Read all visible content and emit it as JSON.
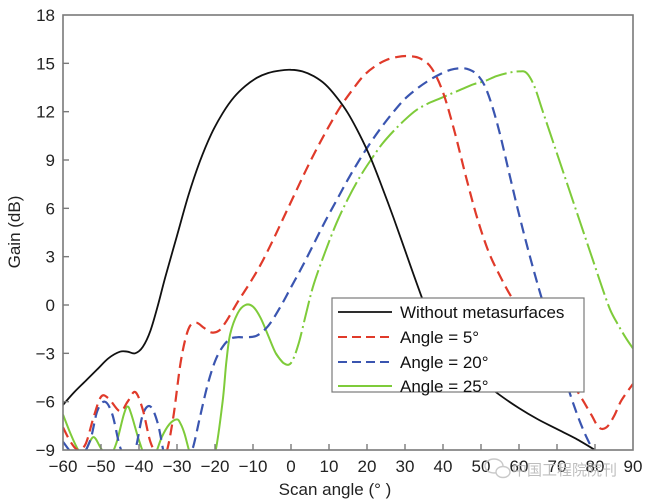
{
  "chart_data": {
    "type": "line",
    "title": "",
    "xlabel": "Scan angle (° )",
    "ylabel": "Gain (dB)",
    "xlim": [
      -60,
      90
    ],
    "ylim": [
      -9,
      18
    ],
    "xticks": [
      -60,
      -50,
      -40,
      -30,
      -20,
      -10,
      0,
      10,
      20,
      30,
      40,
      50,
      60,
      70,
      80,
      90
    ],
    "xtick_labels": [
      "−60",
      "−50",
      "−40",
      "−30",
      "−20",
      "−10",
      "0",
      "10",
      "20",
      "30",
      "40",
      "50",
      "60",
      "70",
      "80",
      "90"
    ],
    "yticks": [
      18,
      15,
      12,
      9,
      6,
      3,
      0,
      -3,
      -6,
      -9
    ],
    "ytick_labels": [
      "18",
      "15",
      "12",
      "9",
      "6",
      "3",
      "0",
      "−3",
      "−6",
      "−9"
    ],
    "grid": false,
    "legend": {
      "placement": "lower-right"
    },
    "series": [
      {
        "name": "Without metasurfaces",
        "color": "#111111",
        "style": "solid",
        "x": [
          -60,
          -57,
          -54,
          -51,
          -48,
          -45,
          -43,
          -41,
          -39,
          -37,
          -35,
          -33,
          -30,
          -27,
          -24,
          -21,
          -18,
          -15,
          -12,
          -9,
          -6,
          -3,
          0,
          3,
          6,
          9,
          12,
          15,
          18,
          21,
          24,
          27,
          30,
          33,
          36,
          39,
          42,
          45,
          50,
          55,
          60,
          65,
          70,
          75,
          80
        ],
        "y": [
          -6.2,
          -5.4,
          -4.7,
          -4.0,
          -3.3,
          -2.9,
          -2.9,
          -3.0,
          -2.6,
          -1.6,
          0.0,
          1.8,
          4.3,
          6.8,
          8.9,
          10.6,
          11.9,
          12.9,
          13.6,
          14.1,
          14.4,
          14.55,
          14.6,
          14.5,
          14.2,
          13.7,
          12.9,
          11.9,
          10.6,
          9.1,
          7.3,
          5.4,
          3.4,
          1.4,
          -0.5,
          -2.0,
          -3.0,
          -3.7,
          -4.7,
          -5.6,
          -6.4,
          -7.1,
          -7.7,
          -8.3,
          -9.0
        ]
      },
      {
        "name": "Angle = 5°",
        "color": "#e03a2a",
        "style": "dashed",
        "x": [
          -60,
          -58,
          -56,
          -54,
          -52,
          -50,
          -48,
          -45,
          -43,
          -41,
          -39,
          -37,
          -35,
          -33,
          -31,
          -29,
          -27,
          -25,
          -23,
          -21,
          -19,
          -17,
          -14,
          -11,
          -8,
          -5,
          -2,
          1,
          4,
          7,
          10,
          13,
          16,
          19,
          22,
          25,
          28,
          31,
          34,
          37,
          40,
          43,
          46,
          49,
          52,
          55,
          58,
          61,
          64,
          67,
          70,
          73,
          76,
          79,
          81,
          83,
          85,
          87,
          90
        ],
        "y": [
          -7.6,
          -8.5,
          -9.0,
          -8.6,
          -7.0,
          -5.7,
          -5.8,
          -6.6,
          -6.0,
          -5.4,
          -6.5,
          -8.5,
          -9.3,
          -9.3,
          -7.0,
          -3.5,
          -1.5,
          -1.1,
          -1.4,
          -1.7,
          -1.6,
          -1.0,
          0.2,
          1.3,
          2.5,
          3.9,
          5.4,
          6.9,
          8.4,
          9.8,
          11.1,
          12.3,
          13.3,
          14.2,
          14.8,
          15.2,
          15.4,
          15.45,
          15.3,
          14.7,
          13.2,
          10.8,
          8.0,
          5.4,
          3.3,
          1.8,
          0.5,
          -0.5,
          -1.5,
          -2.5,
          -3.5,
          -4.5,
          -5.6,
          -6.8,
          -7.6,
          -7.6,
          -6.9,
          -5.9,
          -4.9
        ]
      },
      {
        "name": "Angle = 20°",
        "color": "#3a55b0",
        "style": "dashed",
        "x": [
          -60,
          -56,
          -53,
          -51,
          -49,
          -47,
          -45,
          -43,
          -41,
          -39,
          -37,
          -35,
          -33,
          -31,
          -28,
          -26,
          -24,
          -22,
          -20,
          -18,
          -16,
          -14,
          -12,
          -9,
          -6,
          -3,
          0,
          3,
          6,
          9,
          12,
          15,
          18,
          21,
          24,
          27,
          30,
          33,
          36,
          39,
          42,
          45,
          47,
          49,
          51,
          53,
          55,
          57,
          59,
          61,
          63,
          65,
          67,
          69,
          71,
          73,
          75,
          77,
          79,
          80
        ],
        "y": [
          -8.5,
          -9.5,
          -8.5,
          -6.6,
          -6.0,
          -6.8,
          -8.8,
          -9.6,
          -9.0,
          -6.8,
          -6.3,
          -7.4,
          -9.6,
          -9.8,
          -9.6,
          -9.0,
          -7.0,
          -5.0,
          -3.5,
          -2.6,
          -2.1,
          -2.0,
          -2.0,
          -1.9,
          -1.3,
          -0.2,
          1.1,
          2.4,
          3.8,
          5.2,
          6.5,
          7.8,
          9.0,
          10.1,
          11.1,
          12.0,
          12.8,
          13.4,
          13.9,
          14.3,
          14.6,
          14.7,
          14.6,
          14.3,
          13.6,
          12.3,
          10.6,
          8.6,
          6.6,
          4.7,
          2.9,
          1.2,
          -0.4,
          -2.0,
          -3.6,
          -5.2,
          -6.6,
          -7.8,
          -8.8,
          -9.2
        ]
      },
      {
        "name": "Angle = 25°",
        "color": "#7ecb3a",
        "style": "solid-then-dashdot",
        "x": [
          -60,
          -58,
          -56,
          -55,
          -54,
          -52,
          -50,
          -48,
          -46,
          -44,
          -43,
          -42,
          -40,
          -38,
          -36,
          -34,
          -32,
          -30,
          -29,
          -28,
          -26,
          -24,
          -22,
          -20,
          -18,
          -17,
          -16,
          -14,
          -12,
          -10,
          -8,
          -6,
          -4,
          -2,
          0,
          2,
          4,
          6,
          9,
          12,
          15,
          18,
          21,
          24,
          27,
          30,
          33,
          36,
          39,
          42,
          45,
          48,
          51,
          54,
          57,
          60,
          62,
          64,
          66,
          68,
          70,
          72,
          74,
          76,
          78,
          80,
          82,
          84,
          86,
          88,
          90
        ],
        "y": [
          -6.8,
          -8.0,
          -9.0,
          -9.2,
          -9.0,
          -8.2,
          -8.9,
          -9.5,
          -8.6,
          -6.8,
          -6.3,
          -6.8,
          -8.4,
          -9.6,
          -9.4,
          -8.2,
          -7.4,
          -7.1,
          -7.4,
          -8.0,
          -9.6,
          -9.6,
          -9.3,
          -9.2,
          -6.0,
          -3.5,
          -1.8,
          -0.5,
          0.0,
          -0.1,
          -0.8,
          -1.9,
          -3.0,
          -3.6,
          -3.6,
          -2.4,
          -0.5,
          1.3,
          3.3,
          5.1,
          6.6,
          7.9,
          9.0,
          10.0,
          10.8,
          11.5,
          12.1,
          12.5,
          12.8,
          13.1,
          13.4,
          13.7,
          13.9,
          14.2,
          14.4,
          14.5,
          14.4,
          13.6,
          12.2,
          10.8,
          9.4,
          8.0,
          6.6,
          5.2,
          3.8,
          2.4,
          1.0,
          -0.3,
          -1.2,
          -2.0,
          -2.7
        ]
      }
    ]
  },
  "watermark": {
    "text": "中国工程院院刊"
  }
}
